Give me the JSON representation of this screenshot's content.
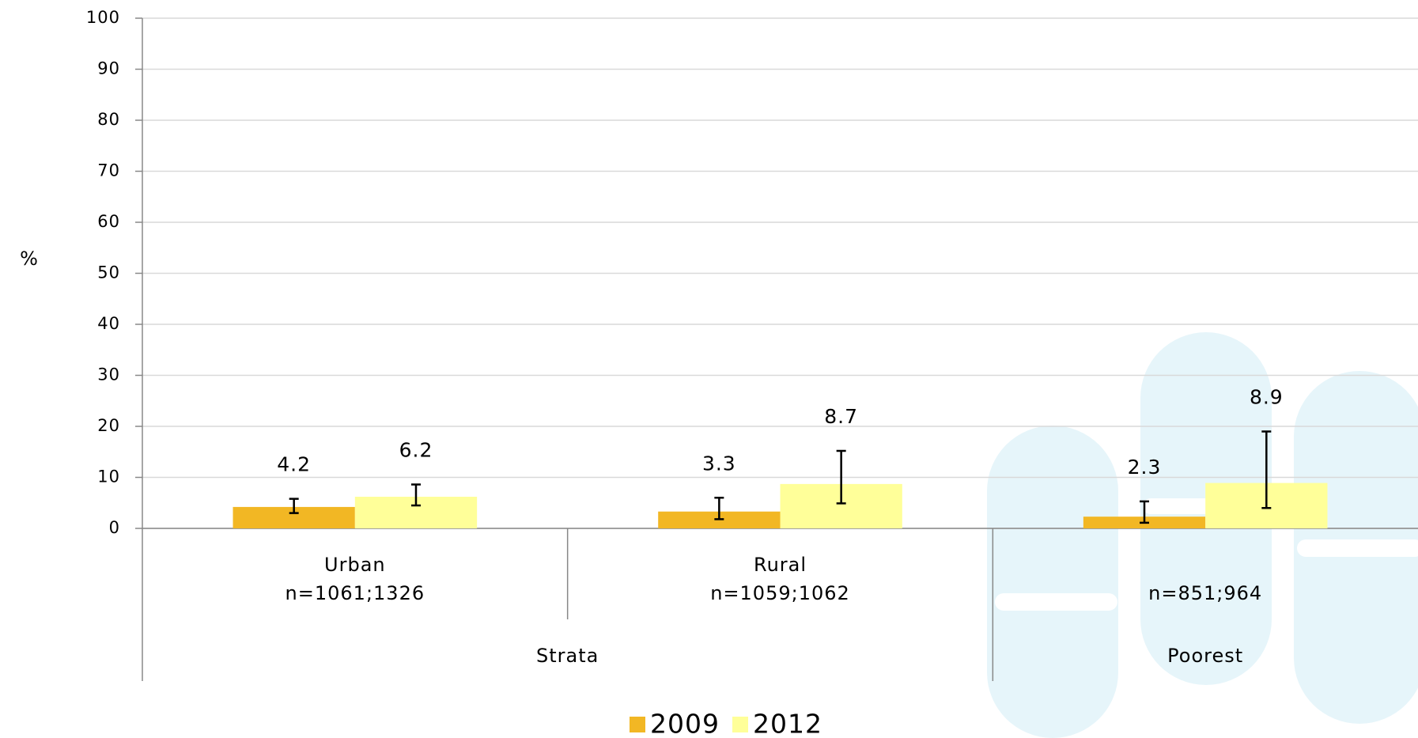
{
  "chart_data": {
    "type": "bar",
    "y_label": "%",
    "categories": [
      "Urban",
      "Rural",
      null
    ],
    "category_sublabels": [
      "n=1061;1326",
      "n=1059;1062",
      "n=851;964"
    ],
    "category_groups": [
      "Strata",
      "Strata",
      "Poorest"
    ],
    "series": [
      {
        "name": "2009",
        "color": "#f2b724",
        "values": [
          4.2,
          3.3,
          2.3
        ],
        "error_low": [
          3.0,
          1.8,
          1.1
        ],
        "error_high": [
          5.8,
          6.0,
          5.3
        ]
      },
      {
        "name": "2012",
        "color": "#ffff99",
        "values": [
          6.2,
          8.7,
          8.9
        ],
        "error_low": [
          4.5,
          4.9,
          4.0
        ],
        "error_high": [
          8.6,
          15.2,
          19.0
        ]
      }
    ],
    "ylim": [
      0,
      100
    ],
    "yticks": [
      0,
      10,
      20,
      30,
      40,
      50,
      60,
      70,
      80,
      90,
      100
    ],
    "grid": true
  }
}
